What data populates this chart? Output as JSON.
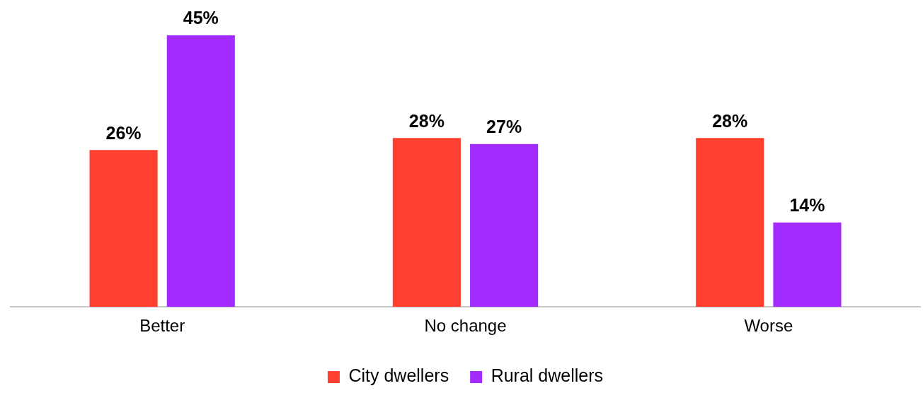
{
  "chart_data": {
    "type": "bar",
    "categories": [
      "Better",
      "No change",
      "Worse"
    ],
    "series": [
      {
        "name": "City dwellers",
        "color": "#ff4030",
        "values": [
          26,
          28,
          28
        ],
        "value_labels": [
          "26%",
          "28%",
          "28%"
        ]
      },
      {
        "name": "Rural dwellers",
        "color": "#a22bff",
        "values": [
          45,
          27,
          14
        ],
        "value_labels": [
          "45%",
          "27%",
          "14%"
        ]
      }
    ],
    "legend": "bottom",
    "grid": false
  }
}
